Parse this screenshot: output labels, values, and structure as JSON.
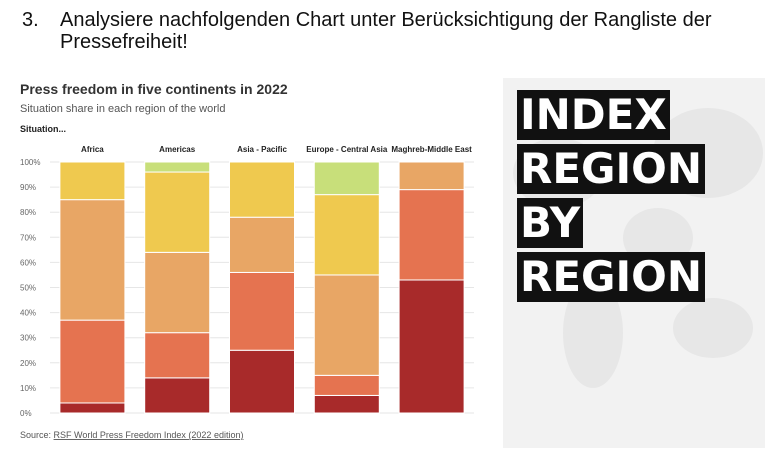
{
  "task": {
    "number": "3.",
    "text": "Analysiere nachfolgenden Chart unter Berücksichtigung der Rangliste der Pressefreiheit!"
  },
  "chart_data": {
    "type": "bar",
    "stacked": true,
    "title": "Press freedom in five continents in 2022",
    "subtitle": "Situation share in each region of the world",
    "legend_title": "Situation...",
    "categories": [
      "Africa",
      "Americas",
      "Asia - Pacific",
      "Europe - Central Asia",
      "Maghreb-Middle East"
    ],
    "series": [
      {
        "color": "#a82a2a",
        "values": [
          4,
          14,
          25,
          7,
          53
        ]
      },
      {
        "color": "#e57350",
        "values": [
          33,
          18,
          31,
          8,
          36
        ]
      },
      {
        "color": "#e8a665",
        "values": [
          48,
          32,
          22,
          40,
          11
        ]
      },
      {
        "color": "#efc94f",
        "values": [
          15,
          32,
          22,
          32,
          0
        ]
      },
      {
        "color": "#c8df7a",
        "values": [
          0,
          4,
          0,
          13,
          0
        ]
      }
    ],
    "y_ticks": [
      "0%",
      "10%",
      "20%",
      "30%",
      "40%",
      "50%",
      "60%",
      "70%",
      "80%",
      "90%",
      "100%"
    ],
    "ylim": [
      0,
      100
    ],
    "grid": true,
    "source_prefix": "Source:",
    "source_link": "RSF World Press Freedom Index (2022 edition)"
  },
  "index_panel": {
    "words": [
      "INDEX",
      "REGION",
      "BY",
      "REGION"
    ]
  },
  "colors": {
    "very_serious": "#a82a2a",
    "difficult": "#e57350",
    "problematic": "#e8a665",
    "satisfactory": "#efc94f",
    "good": "#c8df7a"
  }
}
